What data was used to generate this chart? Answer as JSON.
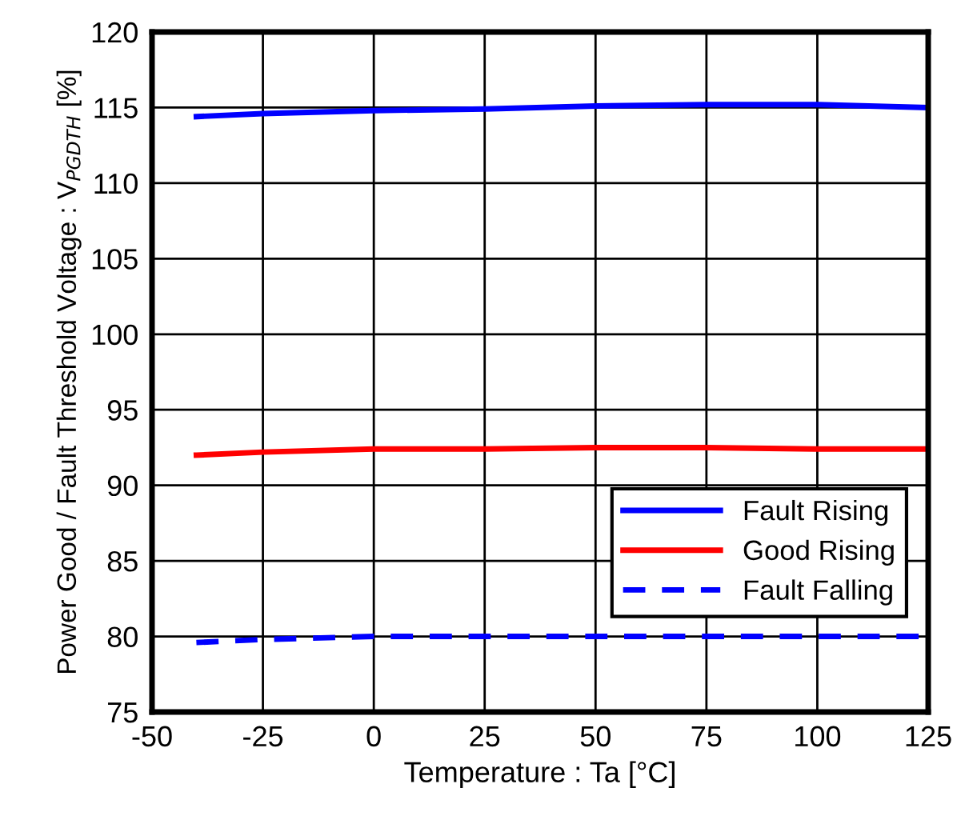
{
  "chart_data": {
    "type": "line",
    "xlabel": "Temperature : Ta [°C]",
    "ylabel": "Power Good / Fault Threshold Voltage : V$_{PGDTH}$ [%]",
    "x": [
      -40,
      -25,
      0,
      25,
      50,
      75,
      100,
      125
    ],
    "series": [
      {
        "name": "Fault Rising",
        "color": "#0000ff",
        "line_style": "solid",
        "values": [
          114.4,
          114.6,
          114.8,
          114.9,
          115.1,
          115.2,
          115.2,
          115.0
        ]
      },
      {
        "name": "Good Rising",
        "color": "#ff0000",
        "line_style": "solid",
        "values": [
          92.0,
          92.2,
          92.4,
          92.4,
          92.5,
          92.5,
          92.4,
          92.4
        ]
      },
      {
        "name": "Fault Falling",
        "color": "#0000ff",
        "line_style": "dashed",
        "values": [
          79.6,
          79.8,
          80.0,
          80.0,
          80.0,
          80.0,
          80.0,
          80.0
        ]
      }
    ],
    "xlim": [
      -50,
      125
    ],
    "xticks": [
      -50,
      -25,
      0,
      25,
      50,
      75,
      100,
      125
    ],
    "ylim": [
      75,
      120
    ],
    "yticks": [
      75,
      80,
      85,
      90,
      95,
      100,
      105,
      110,
      115,
      120
    ],
    "grid": true,
    "legend": "bottom right",
    "marker": "none"
  }
}
